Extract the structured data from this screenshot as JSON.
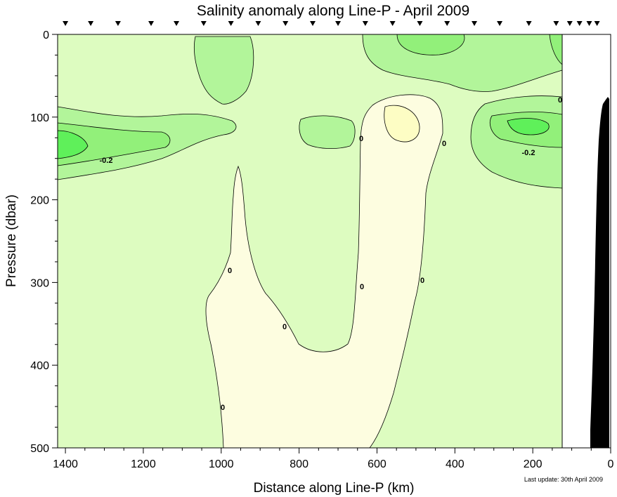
{
  "chart_data": {
    "type": "contour",
    "title": "Salinity anomaly along Line-P - April 2009",
    "xlabel": "Distance along Line-P (km)",
    "ylabel": "Pressure (dbar)",
    "xlim": [
      1420,
      0
    ],
    "ylim": [
      0,
      500
    ],
    "x_ticks": [
      1400,
      1200,
      1000,
      800,
      600,
      400,
      200,
      0
    ],
    "y_ticks": [
      0,
      100,
      200,
      300,
      400,
      500
    ],
    "contour_labels": [
      "-0.2",
      "-0.2",
      "0",
      "0",
      "0",
      "0",
      "0",
      "0",
      "0",
      "0"
    ],
    "station_markers_km": [
      1400,
      1335,
      1265,
      1180,
      1115,
      1045,
      975,
      905,
      835,
      765,
      700,
      630,
      560,
      490,
      420,
      350,
      285,
      210,
      140,
      105,
      80,
      55,
      35
    ],
    "colors": {
      "background": "#ffffff",
      "neutral": "#ddfcc0",
      "negative_light": "#b2f59a",
      "negative_mid": "#92f07a",
      "negative_strong": "#5ff05a",
      "positive_light": "#fdfde0",
      "positive_mid": "#fdfdc4",
      "bathymetry": "#000000"
    }
  },
  "footer": {
    "last_update": "Last update: 30th April 2009"
  }
}
